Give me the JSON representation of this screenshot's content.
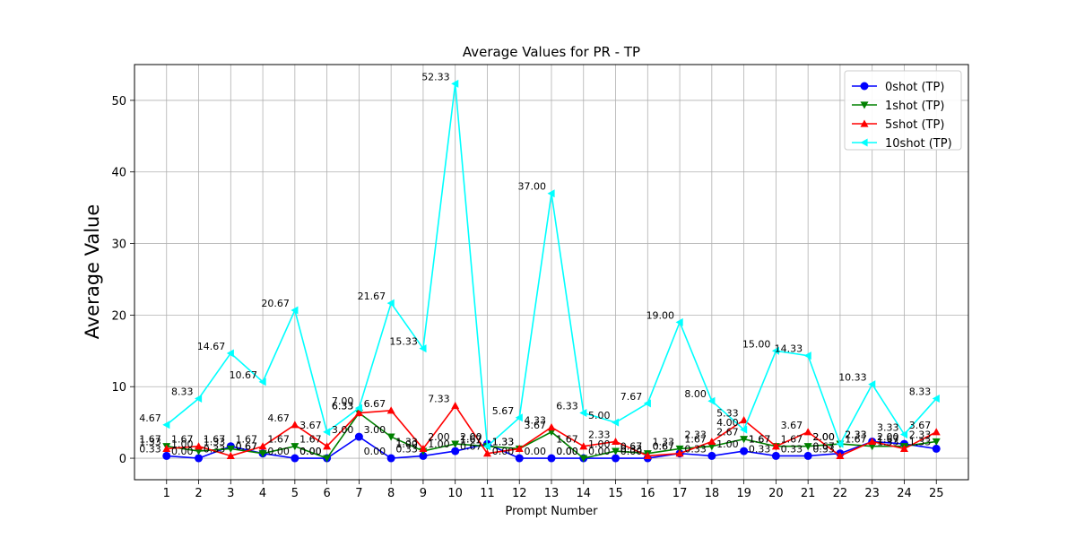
{
  "chart_data": {
    "type": "line",
    "title": "Average Values for PR - TP",
    "xlabel": "Prompt Number",
    "ylabel": "Average Value",
    "x": [
      1,
      2,
      3,
      4,
      5,
      6,
      7,
      8,
      9,
      10,
      11,
      12,
      13,
      14,
      15,
      16,
      17,
      18,
      19,
      20,
      21,
      22,
      23,
      24,
      25
    ],
    "ylim": [
      -3,
      55
    ],
    "yticks": [
      0,
      10,
      20,
      30,
      40,
      50
    ],
    "grid": true,
    "legend_position": "top-right",
    "series": [
      {
        "name": "0shot (TP)",
        "color": "#0000ff",
        "marker": "circle",
        "values": [
          0.33,
          0.0,
          1.67,
          0.67,
          0.0,
          0.0,
          3.0,
          0.0,
          0.33,
          1.0,
          2.0,
          0.0,
          0.0,
          0.0,
          0.0,
          0.0,
          0.67,
          0.33,
          1.0,
          0.33,
          0.33,
          0.67,
          2.33,
          2.0,
          1.33
        ],
        "labels": [
          "0.33",
          "0.00",
          "1.67",
          "0.67",
          "0.00",
          "0.00",
          "3.00",
          "0.00",
          "0.33",
          "1.00",
          "2.00",
          "0.00",
          "0.00",
          "0.00",
          "0.00",
          "0.00",
          "0.67",
          "0.33",
          "1.00",
          "0.33",
          "0.33",
          "0.67",
          "2.33",
          "2.00",
          "1.33"
        ]
      },
      {
        "name": "1shot (TP)",
        "color": "#008000",
        "marker": "triangle-down",
        "values": [
          1.67,
          1.0,
          1.33,
          0.67,
          1.67,
          0.0,
          6.33,
          3.0,
          1.0,
          2.0,
          1.67,
          1.33,
          3.67,
          0.0,
          1.0,
          0.67,
          1.33,
          1.67,
          2.67,
          1.67,
          1.67,
          2.0,
          1.67,
          1.67,
          2.33
        ],
        "labels": [
          "1.67",
          "1.00",
          "1.33",
          "0.67",
          "1.67",
          "0.00",
          "6.33",
          "3.00",
          "1.00",
          "2.00",
          "1.67",
          "1.33",
          "3.67",
          "0.00",
          "1.00",
          "0.67",
          "1.33",
          "1.67",
          "2.67",
          "1.67",
          "1.67",
          "2.00",
          "1.67",
          "1.67",
          "2.33"
        ]
      },
      {
        "name": "5shot (TP)",
        "color": "#ff0000",
        "marker": "triangle-up",
        "values": [
          1.33,
          1.67,
          0.33,
          1.67,
          4.67,
          1.67,
          6.33,
          6.67,
          1.33,
          7.33,
          0.67,
          1.33,
          4.33,
          1.67,
          2.33,
          0.33,
          0.67,
          2.33,
          5.33,
          1.67,
          3.67,
          0.33,
          2.33,
          1.33,
          3.67
        ],
        "labels": [
          "1.33",
          "1.67",
          "0.33",
          "1.67",
          "4.67",
          "1.67",
          "6.33",
          "6.67",
          "1.33",
          "7.33",
          "0.67",
          "1.33",
          "4.33",
          "1.67",
          "2.33",
          "0.33",
          "0.67",
          "2.33",
          "5.33",
          "1.67",
          "3.67",
          "0.33",
          "2.33",
          "1.33",
          "3.67"
        ]
      },
      {
        "name": "10shot (TP)",
        "color": "#00ffff",
        "marker": "triangle-left",
        "values": [
          4.67,
          8.33,
          14.67,
          10.67,
          20.67,
          3.67,
          7.0,
          21.67,
          15.33,
          52.33,
          1.67,
          5.67,
          37.0,
          6.33,
          5.0,
          7.67,
          19.0,
          8.0,
          4.0,
          15.0,
          14.33,
          2.0,
          10.33,
          3.33,
          8.33
        ],
        "labels": [
          "4.67",
          "8.33",
          "14.67",
          "10.67",
          "20.67",
          "3.67",
          "7.00",
          "21.67",
          "15.33",
          "52.33",
          "1.67",
          "5.67",
          "37.00",
          "6.33",
          "5.00",
          "7.67",
          "19.00",
          "8.00",
          "4.00",
          "15.00",
          "14.33",
          "2.00",
          "10.33",
          "3.33",
          "8.33"
        ]
      }
    ]
  }
}
